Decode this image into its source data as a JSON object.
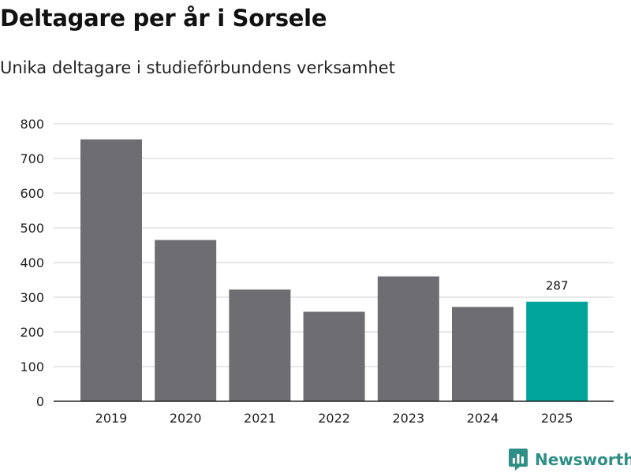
{
  "header": {
    "title": "Deltagare per år i Sorsele",
    "subtitle": "Unika deltagare i studieförbundens verksamhet"
  },
  "brand": {
    "name": "Newsworthy"
  },
  "colors": {
    "bar": "#6e6d72",
    "highlight": "#00a49a",
    "grid": "#d9d9d9",
    "axis": "#222222",
    "brand": "#2f8f87"
  },
  "chart_data": {
    "type": "bar",
    "title": "Deltagare per år i Sorsele",
    "subtitle": "Unika deltagare i studieförbundens verksamhet",
    "xlabel": "",
    "ylabel": "",
    "categories": [
      "2019",
      "2020",
      "2021",
      "2022",
      "2023",
      "2024",
      "2025"
    ],
    "values": [
      755,
      465,
      322,
      258,
      360,
      272,
      287
    ],
    "highlight_index": 6,
    "data_labels": {
      "6": "287"
    },
    "ylim": [
      0,
      800
    ],
    "yticks": [
      0,
      100,
      200,
      300,
      400,
      500,
      600,
      700,
      800
    ],
    "grid": true
  }
}
